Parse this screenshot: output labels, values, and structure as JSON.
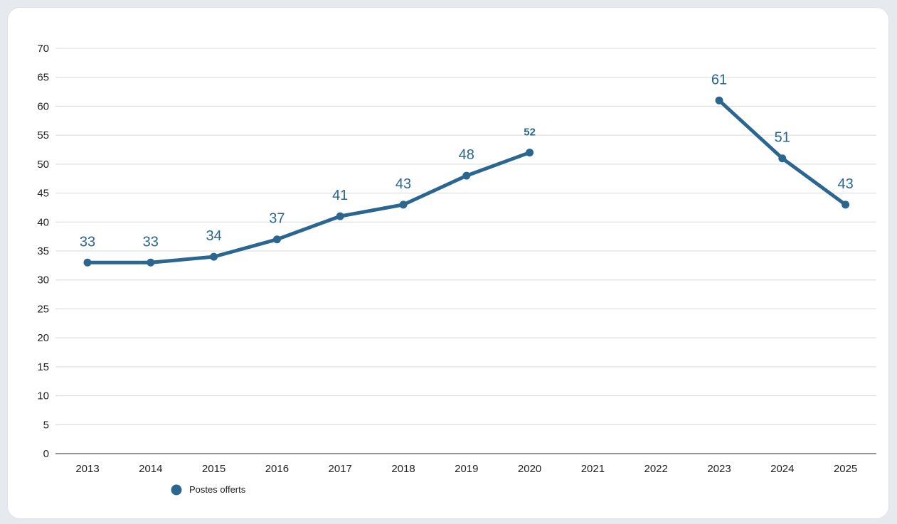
{
  "chart_data": {
    "type": "line",
    "title": "",
    "xlabel": "",
    "ylabel": "",
    "categories": [
      "2013",
      "2014",
      "2015",
      "2016",
      "2017",
      "2018",
      "2019",
      "2020",
      "2021",
      "2022",
      "2023",
      "2024",
      "2025"
    ],
    "series": [
      {
        "name": "Postes offerts",
        "color": "#2a6690",
        "values": [
          33,
          33,
          34,
          37,
          41,
          43,
          48,
          52,
          null,
          null,
          61,
          51,
          43
        ],
        "labels": [
          "33",
          "33",
          "34",
          "37",
          "41",
          "43",
          "48",
          "52",
          "",
          "",
          "61",
          "51",
          "43"
        ]
      }
    ],
    "ylim": [
      0,
      70
    ],
    "yticks": [
      "0",
      "5",
      "10",
      "15",
      "20",
      "25",
      "30",
      "35",
      "40",
      "45",
      "50",
      "55",
      "60",
      "65",
      "70"
    ],
    "grid": true,
    "legend_position": "bottom-left"
  }
}
